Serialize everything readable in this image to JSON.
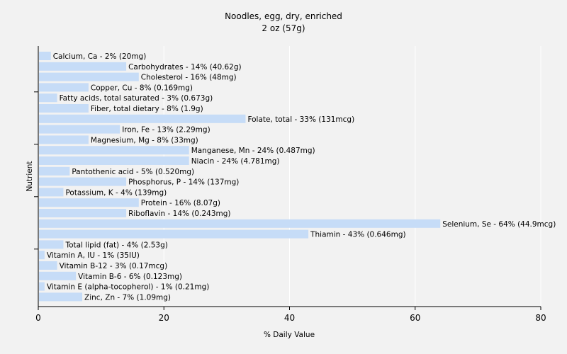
{
  "chart_data": {
    "type": "bar",
    "orientation": "horizontal",
    "title": "Noodles, egg, dry, enriched",
    "subtitle": "2 oz (57g)",
    "xlabel": "% Daily Value",
    "ylabel": "Nutrient",
    "xlim": [
      0,
      80
    ],
    "xticks": [
      0,
      20,
      40,
      60,
      80
    ],
    "grid": "vertical",
    "bar_color": "#c6dcf7",
    "grid_color": "#ffffff",
    "categories": [
      "Calcium, Ca",
      "Carbohydrates",
      "Cholesterol",
      "Copper, Cu",
      "Fatty acids, total saturated",
      "Fiber, total dietary",
      "Folate, total",
      "Iron, Fe",
      "Magnesium, Mg",
      "Manganese, Mn",
      "Niacin",
      "Pantothenic acid",
      "Phosphorus, P",
      "Potassium, K",
      "Protein",
      "Riboflavin",
      "Selenium, Se",
      "Thiamin",
      "Total lipid (fat)",
      "Vitamin A, IU",
      "Vitamin B-12",
      "Vitamin B-6",
      "Vitamin E (alpha-tocopherol)",
      "Zinc, Zn"
    ],
    "values": [
      2,
      14,
      16,
      8,
      3,
      8,
      33,
      13,
      8,
      24,
      24,
      5,
      14,
      4,
      16,
      14,
      64,
      43,
      4,
      1,
      3,
      6,
      1,
      7
    ],
    "labels": [
      "Calcium, Ca - 2% (20mg)",
      "Carbohydrates - 14% (40.62g)",
      "Cholesterol - 16% (48mg)",
      "Copper, Cu - 8% (0.169mg)",
      "Fatty acids, total saturated - 3% (0.673g)",
      "Fiber, total dietary - 8% (1.9g)",
      "Folate, total - 33% (131mcg)",
      "Iron, Fe - 13% (2.29mg)",
      "Magnesium, Mg - 8% (33mg)",
      "Manganese, Mn - 24% (0.487mg)",
      "Niacin - 24% (4.781mg)",
      "Pantothenic acid - 5% (0.520mg)",
      "Phosphorus, P - 14% (137mg)",
      "Potassium, K - 4% (139mg)",
      "Protein - 16% (8.07g)",
      "Riboflavin - 14% (0.243mg)",
      "Selenium, Se - 64% (44.9mcg)",
      "Thiamin - 43% (0.646mg)",
      "Total lipid (fat) - 4% (2.53g)",
      "Vitamin A, IU - 1% (35IU)",
      "Vitamin B-12 - 3% (0.17mcg)",
      "Vitamin B-6 - 6% (0.123mg)",
      "Vitamin E (alpha-tocopherol) - 1% (0.21mg)",
      "Zinc, Zn - 7% (1.09mg)"
    ]
  }
}
